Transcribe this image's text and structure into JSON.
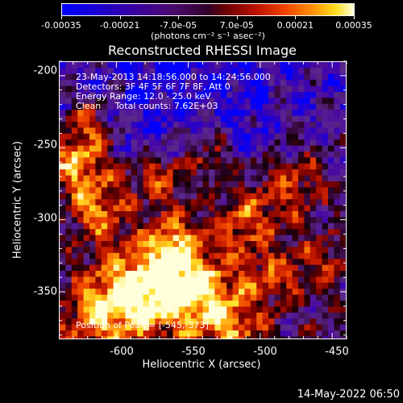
{
  "colorbar": {
    "labels": [
      "-0.00035",
      "-0.00021",
      "-7.0e-05",
      "7.0e-05",
      "0.00021",
      "0.00035"
    ],
    "unit": "(photons cm⁻² s⁻¹ asec⁻²)"
  },
  "title": "Reconstructed RHESSI Image",
  "info": {
    "line1": "23-May-2013 14:18:56.000 to 14:24:56.000",
    "line2": "Detectors: 3F 4F 5F 6F 7F 8F, Att 0",
    "line3": "Energy Range: 12.0 - 25.0 keV",
    "line4": "Clean     Total counts: 7.62E+03",
    "line5": "Position of Peak = [-545,-373]"
  },
  "timestamp": "14-May-2022 06:50",
  "chart_data": {
    "type": "heatmap",
    "title": "Reconstructed RHESSI Image",
    "xlabel": "Heliocentric X (arcsec)",
    "ylabel": "Heliocentric Y (arcsec)",
    "xlim": [
      -640,
      -440
    ],
    "ylim": [
      -383,
      -190
    ],
    "x_ticks": [
      -600,
      -550,
      -500,
      -450
    ],
    "y_ticks": [
      -200,
      -250,
      -300,
      -350
    ],
    "x_tick_labels": [
      "-600",
      "-550",
      "-500",
      "-450"
    ],
    "y_tick_labels": [
      "-200",
      "-250",
      "-300",
      "-350"
    ],
    "colorbar_range": [
      -0.00035,
      0.00035
    ],
    "colorbar_ticks": [
      -0.00035,
      -0.00021,
      -7e-05,
      7e-05,
      0.00021,
      0.00035
    ],
    "peak_position": [
      -545,
      -373
    ],
    "grid": false
  }
}
